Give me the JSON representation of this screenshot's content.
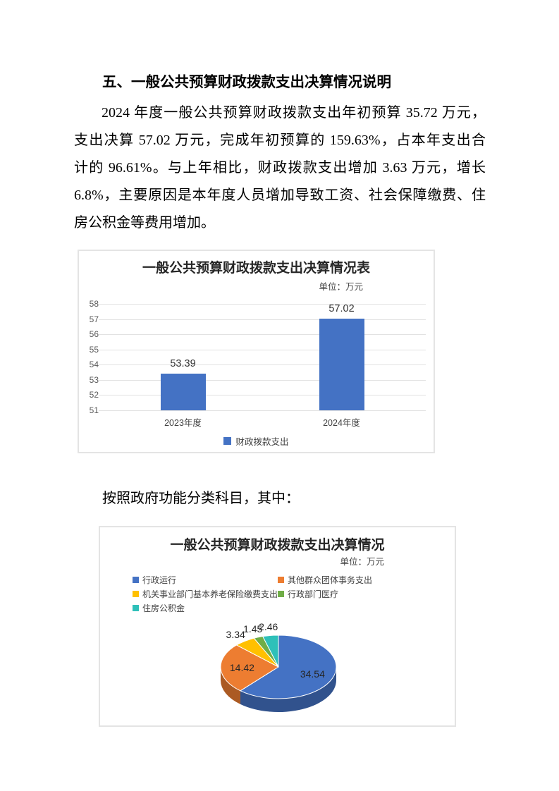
{
  "document": {
    "heading": "五、一般公共预算财政拨款支出决算情况说明",
    "paragraph_lines": [
      "2024 年度一般公共预算财政拨款支出年初预算 35.72 万元，",
      "支出决算 57.02 万元，完成年初预算的 159.63%，占本年支出合",
      "计的 96.61%。与上年相比，财政拨款支出增加 3.63 万元，增长",
      "6.8%，主要原因是本年度人员增加导致工资、社会保障缴费、住",
      "房公积金等费用增加。"
    ],
    "note": "按照政府功能分类科目，其中："
  },
  "chart_data": [
    {
      "type": "bar",
      "title": "一般公共预算财政拨款支出决算情况表",
      "unit_label": "单位：万元",
      "categories": [
        "2023年度",
        "2024年度"
      ],
      "series": [
        {
          "name": "财政拨款支出",
          "values": [
            53.39,
            57.02
          ]
        }
      ],
      "ylim": [
        51,
        58
      ],
      "yticks": [
        51,
        52,
        53,
        54,
        55,
        56,
        57,
        58
      ],
      "grid": true,
      "legend_position": "bottom",
      "bar_color": "#4472C4",
      "data_labels": [
        "53.39",
        "57.02"
      ]
    },
    {
      "type": "pie",
      "style": "3d",
      "title": "一般公共预算财政拨款支出决算情况",
      "unit_label": "单位：万元",
      "labels": [
        "行政运行",
        "其他群众团体事务支出",
        "机关事业部门基本养老保险缴费支出",
        "行政部门医疗",
        "住房公积金"
      ],
      "values": [
        34.54,
        14.42,
        3.34,
        1.45,
        2.46
      ],
      "colors": [
        "#4472C4",
        "#ED7D31",
        "#FFC000",
        "#70AD47",
        "#2EC0B9"
      ],
      "legend_position": "top",
      "data_labels": [
        "34.54",
        "14.42",
        "3.34",
        "1.45",
        "2.46"
      ]
    }
  ]
}
